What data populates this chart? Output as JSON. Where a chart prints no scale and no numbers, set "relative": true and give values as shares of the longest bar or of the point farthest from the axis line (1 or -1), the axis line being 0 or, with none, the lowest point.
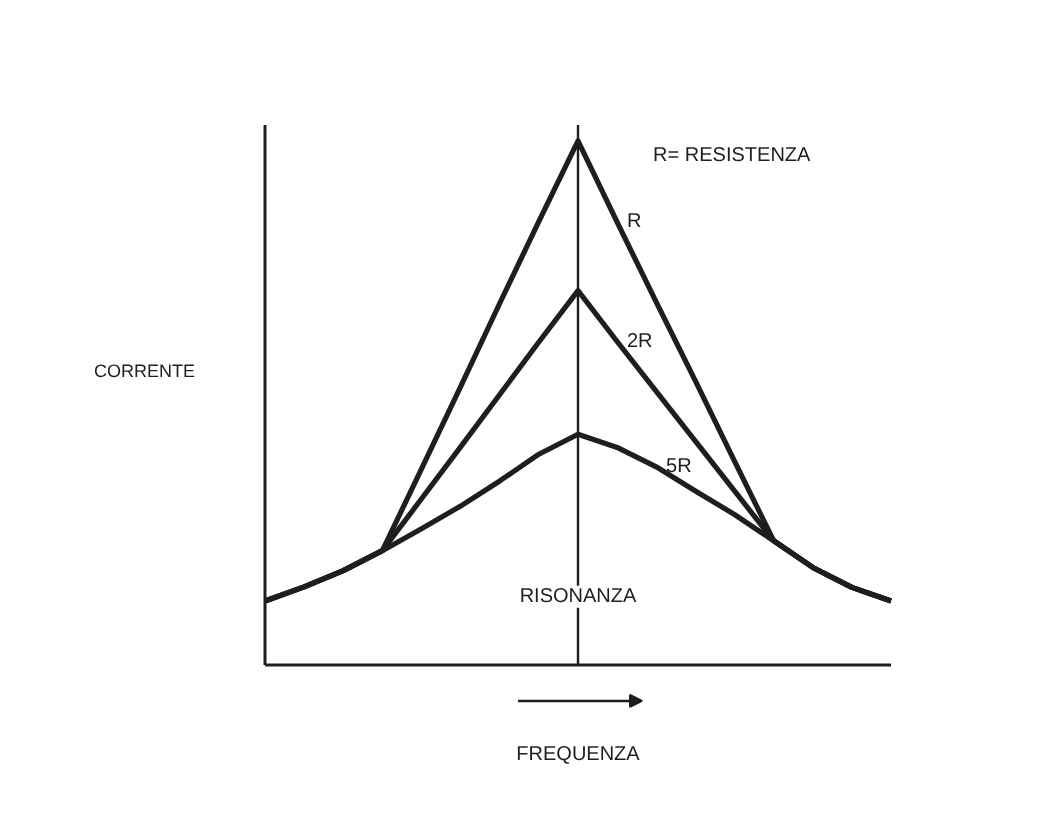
{
  "chart_data": {
    "type": "line",
    "relative": true,
    "xlabel": "FREQUENZA",
    "ylabel": "CORRENTE",
    "categories": [
      null,
      null,
      null,
      null,
      null,
      null,
      null,
      null,
      null,
      null,
      null,
      null,
      null,
      null,
      null,
      null,
      null
    ],
    "series": [
      {
        "name": "R",
        "color": "#1e1e1e",
        "values": [
          0.122,
          0.149,
          0.18,
          0.218,
          0.374,
          0.531,
          0.69,
          0.846,
          1,
          0.845,
          0.692,
          0.542,
          0.389,
          0.237,
          0.186,
          0.148,
          0.122
        ]
      },
      {
        "name": "2R",
        "color": "#1e1e1e",
        "values": [
          0.122,
          0.149,
          0.18,
          0.218,
          0.317,
          0.416,
          0.516,
          0.616,
          0.714,
          0.617,
          0.522,
          0.427,
          0.332,
          0.237,
          0.186,
          0.148,
          0.122
        ]
      },
      {
        "name": "5R",
        "color": "#1e1e1e",
        "values": [
          0.122,
          0.149,
          0.18,
          0.218,
          0.26,
          0.303,
          0.351,
          0.402,
          0.44,
          0.415,
          0.378,
          0.332,
          0.287,
          0.237,
          0.186,
          0.148,
          0.122
        ]
      }
    ],
    "annotations": [
      "R= RESISTENZA",
      "RISONANZA"
    ],
    "marker": "none",
    "line_style": "solid"
  }
}
